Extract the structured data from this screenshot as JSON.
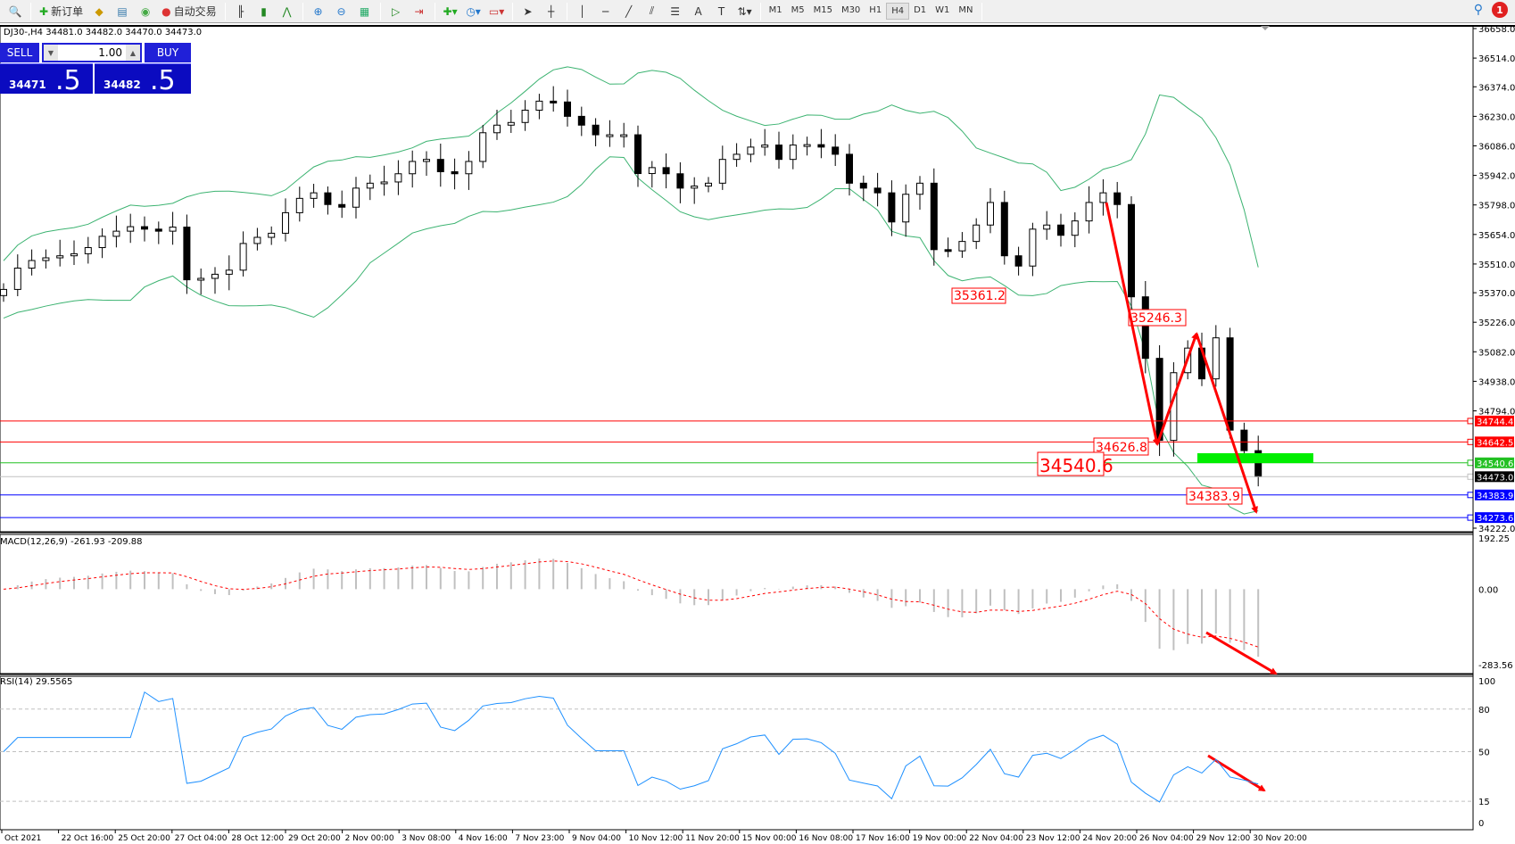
{
  "toolbar": {
    "new_order": "新订单",
    "auto_trading": "自动交易",
    "timeframes": [
      "M1",
      "M5",
      "M15",
      "M30",
      "H1",
      "H4",
      "D1",
      "W1",
      "MN"
    ],
    "active_timeframe": "H4",
    "notification_count": "1"
  },
  "chart": {
    "info": "DJ30-,H4  34481.0 34482.0 34470.0 34473.0",
    "price_ticks": [
      "36658.0",
      "36514.0",
      "36374.0",
      "36230.0",
      "36086.0",
      "35942.0",
      "35798.0",
      "35654.0",
      "35510.0",
      "35370.0",
      "35226.0",
      "35082.0",
      "34938.0",
      "34794.0",
      "34222.0"
    ],
    "price_tick_values": [
      36658,
      36514,
      36374,
      36230,
      36086,
      35942,
      35798,
      35654,
      35510,
      35370,
      35226,
      35082,
      34938,
      34794,
      34222
    ],
    "price_range": [
      34222,
      36658
    ],
    "time_labels": [
      "Oct 2021",
      "22 Oct 16:00",
      "25 Oct 20:00",
      "27 Oct 04:00",
      "28 Oct 12:00",
      "29 Oct 20:00",
      "2 Nov 00:00",
      "3 Nov 08:00",
      "4 Nov 16:00",
      "7 Nov 23:00",
      "9 Nov 04:00",
      "10 Nov 12:00",
      "11 Nov 20:00",
      "15 Nov 00:00",
      "16 Nov 08:00",
      "17 Nov 16:00",
      "19 Nov 00:00",
      "22 Nov 04:00",
      "23 Nov 12:00",
      "24 Nov 20:00",
      "26 Nov 04:00",
      "29 Nov 12:00",
      "30 Nov 20:00"
    ],
    "closes": [
      35386,
      35490,
      35527,
      35540,
      35550,
      35560,
      35590,
      35645,
      35670,
      35692,
      35680,
      35670,
      35690,
      35433,
      35440,
      35460,
      35480,
      35610,
      35640,
      35660,
      35760,
      35830,
      35857,
      35800,
      35787,
      35880,
      35904,
      35910,
      35950,
      36010,
      36020,
      35960,
      35950,
      36010,
      36150,
      36187,
      36200,
      36260,
      36304,
      36300,
      36230,
      36187,
      36140,
      36140,
      36140,
      35951,
      35980,
      35950,
      35880,
      35890,
      35904,
      36020,
      36045,
      36080,
      36090,
      36020,
      36090,
      36092,
      36080,
      36045,
      35904,
      35880,
      35857,
      35715,
      35850,
      35904,
      35580,
      35574,
      35620,
      35700,
      35810,
      35550,
      35500,
      35680,
      35700,
      35650,
      35720,
      35810,
      35857,
      35800,
      35350,
      35050,
      34650,
      34980,
      35100,
      34950,
      35150,
      34700,
      34600,
      34473
    ],
    "levels": [
      {
        "price": 34744.4,
        "label": "34744.4",
        "color": "#ff0000"
      },
      {
        "price": 34642.5,
        "label": "34642.5",
        "color": "#ff0000"
      },
      {
        "price": 34540.6,
        "label": "34540.6",
        "color": "#22c022"
      },
      {
        "price": 34473.0,
        "label": "34473.0",
        "color": "#000000",
        "line": "#c0c0c0"
      },
      {
        "price": 34383.9,
        "label": "34383.9",
        "color": "#0000ff"
      },
      {
        "price": 34273.6,
        "label": "34273.6",
        "color": "#0000ff"
      }
    ],
    "annotations": [
      "35361.2",
      "35246.3",
      "34626.8",
      "34540.6",
      "34383.9"
    ],
    "band_color": "#3cb371",
    "arrow_color": "#ff0000",
    "zone_color": "#00ee00"
  },
  "one_click": {
    "sell": "SELL",
    "buy": "BUY",
    "lots": "1.00",
    "sell_small": "34471",
    "sell_big": ".5",
    "buy_small": "34482",
    "buy_big": ".5"
  },
  "macd": {
    "label": "MACD(12,26,9) -261.93 -209.88",
    "ticks": [
      "192.25",
      "0.00",
      "-283.56"
    ],
    "range": [
      -283.56,
      192.25
    ]
  },
  "rsi": {
    "label": "RSI(14) 29.5565",
    "ticks": [
      "100",
      "80",
      "50",
      "15",
      "0"
    ],
    "levels": [
      80,
      50,
      15
    ]
  }
}
